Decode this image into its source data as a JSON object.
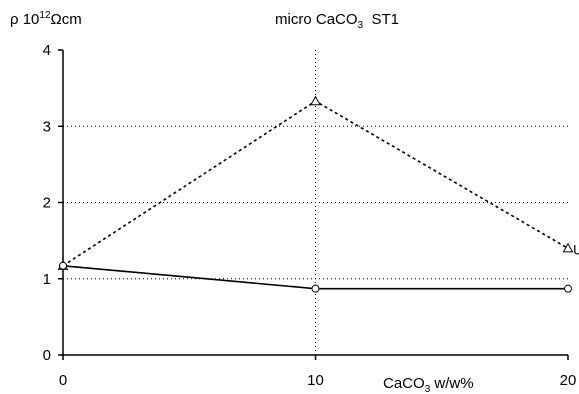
{
  "chart_data": {
    "type": "line",
    "title": {
      "main": "micro CaCO",
      "sub": "3",
      "tail": "  ST1"
    },
    "ylabel": {
      "main": "ρ 10",
      "sup": "12",
      "tail": "Ωcm"
    },
    "xlabel": {
      "main": "CaCO",
      "sub": "3",
      "tail": " w/w%"
    },
    "x": [
      0,
      10,
      20
    ],
    "xlim": [
      0,
      20
    ],
    "ylim": [
      0,
      4
    ],
    "xticks": [
      0,
      10,
      20
    ],
    "yticks": [
      0,
      1,
      2,
      3,
      4
    ],
    "grid": {
      "horizontal": true,
      "vertical_at": [
        10
      ]
    },
    "series": [
      {
        "name": "",
        "style": "dashed",
        "marker": "triangle",
        "values": [
          1.17,
          3.33,
          1.4
        ],
        "end_label": "U"
      },
      {
        "name": "",
        "style": "solid",
        "marker": "circle",
        "values": [
          1.17,
          0.87,
          0.87
        ],
        "end_label": ""
      }
    ],
    "colors": {
      "line": "#000000",
      "grid": "#000000",
      "background": "#ffffff"
    }
  }
}
